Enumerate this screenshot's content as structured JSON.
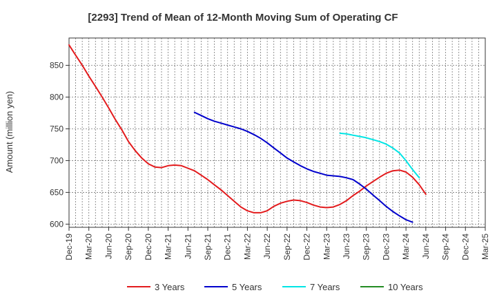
{
  "chart_data": {
    "type": "line",
    "title": "[2293]  Trend of Mean of 12-Month Moving Sum of Operating CF",
    "xlabel": "",
    "ylabel": "Amount (million yen)",
    "ylim": [
      595,
      893
    ],
    "yticks": [
      600,
      650,
      700,
      750,
      800,
      850
    ],
    "categories": [
      "Dec-19",
      "Mar-20",
      "Jun-20",
      "Sep-20",
      "Dec-20",
      "Mar-21",
      "Jun-21",
      "Sep-21",
      "Dec-21",
      "Mar-22",
      "Jun-22",
      "Sep-22",
      "Dec-22",
      "Mar-23",
      "Jun-23",
      "Sep-23",
      "Dec-23",
      "Mar-24",
      "Jun-24",
      "Sep-24",
      "Dec-24",
      "Mar-25"
    ],
    "grid": true,
    "legend_position": "bottom",
    "series": [
      {
        "name": "3 Years",
        "color": "#e31a1c",
        "x": [
          0,
          0.33,
          0.67,
          1,
          1.33,
          1.67,
          2,
          2.33,
          2.67,
          3,
          3.33,
          3.67,
          4,
          4.33,
          4.67,
          5,
          5.33,
          5.67,
          6,
          6.33,
          6.67,
          7,
          7.33,
          7.67,
          8,
          8.33,
          8.67,
          9,
          9.33,
          9.67,
          10,
          10.33,
          10.67,
          11,
          11.33,
          11.67,
          12,
          12.33,
          12.67,
          13,
          13.33,
          13.67,
          14,
          14.33,
          14.67,
          15,
          15.33,
          15.67,
          16,
          16.33,
          16.67,
          17,
          17.33,
          17.67,
          18,
          18.33,
          18.67,
          19
        ],
        "values": [
          882,
          866,
          850,
          833,
          817,
          800,
          783,
          765,
          748,
          730,
          716,
          704,
          695,
          690,
          689,
          692,
          693,
          692,
          688,
          684,
          677,
          670,
          662,
          654,
          645,
          636,
          627,
          621,
          618,
          618,
          621,
          628,
          633,
          636,
          638,
          637,
          634,
          630,
          627,
          626,
          627,
          631,
          637,
          645,
          652,
          660,
          667,
          674,
          680,
          684,
          685,
          682,
          674,
          662,
          647,
          null,
          null,
          null
        ]
      },
      {
        "name": "5 Years",
        "color": "#0000cc",
        "x": [
          6.33,
          6.67,
          7,
          7.33,
          7.67,
          8,
          8.33,
          8.67,
          9,
          9.33,
          9.67,
          10,
          10.33,
          10.67,
          11,
          11.33,
          11.67,
          12,
          12.33,
          12.67,
          13,
          13.33,
          13.67,
          14,
          14.33,
          14.67,
          15,
          15.33,
          15.67,
          16,
          16.33,
          16.67,
          17,
          17.33,
          17.67,
          18,
          18.33,
          18.67,
          19
        ],
        "values": [
          776,
          771,
          766,
          762,
          759,
          756,
          753,
          750,
          746,
          741,
          735,
          728,
          720,
          712,
          704,
          698,
          692,
          687,
          683,
          680,
          677,
          676,
          675,
          673,
          670,
          663,
          655,
          646,
          637,
          628,
          620,
          613,
          607,
          603,
          null,
          null,
          null,
          null,
          null
        ]
      },
      {
        "name": "7 Years",
        "color": "#00e5e5",
        "x": [
          13.67,
          14,
          14.33,
          14.67,
          15,
          15.33,
          15.67,
          16,
          16.33,
          16.67,
          17,
          17.33,
          17.67,
          18,
          18.33,
          18.67,
          19
        ],
        "values": [
          743,
          742,
          740,
          738,
          736,
          733,
          730,
          726,
          720,
          712,
          700,
          686,
          673,
          null,
          null,
          null,
          null
        ]
      },
      {
        "name": "10 Years",
        "color": "#228b22",
        "x": [],
        "values": []
      }
    ]
  }
}
